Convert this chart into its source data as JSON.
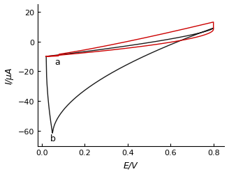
{
  "xlabel": "E/V",
  "ylabel": "I/μA",
  "xlim": [
    -0.02,
    0.85
  ],
  "ylim": [
    -70,
    25
  ],
  "xticks": [
    0.0,
    0.2,
    0.4,
    0.6,
    0.8
  ],
  "yticks": [
    20,
    0,
    -20,
    -40,
    -60
  ],
  "label_a": "a",
  "label_b": "b",
  "curve_a_color": "#cc0000",
  "curve_b_color": "#1a1a1a",
  "background": "#ffffff",
  "figsize": [
    3.28,
    2.51
  ],
  "dpi": 100
}
